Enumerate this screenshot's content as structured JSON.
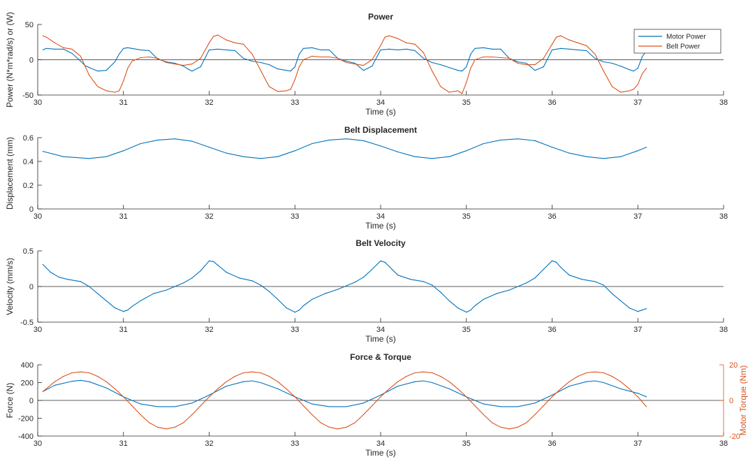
{
  "figure": {
    "colors": {
      "blue": "#0072BD",
      "orange": "#D95319",
      "axis": "#262626",
      "zero_line": "#262626"
    }
  },
  "chart_data": [
    {
      "type": "line",
      "title": "Power",
      "xlabel": "Time (s)",
      "ylabel": "Power (N*m*rad/s) or (W)",
      "xlim": [
        30,
        38
      ],
      "ylim": [
        -50,
        50
      ],
      "xticks": [
        30,
        31,
        32,
        33,
        34,
        35,
        36,
        37,
        38
      ],
      "yticks": [
        -50,
        0,
        50
      ],
      "legend": {
        "position": "top-right"
      },
      "series": [
        {
          "name": "Motor Power",
          "color": "#0072BD",
          "x": [
            30.06,
            30.1,
            30.2,
            30.3,
            30.4,
            30.5,
            30.55,
            30.6,
            30.7,
            30.8,
            30.9,
            30.95,
            31,
            31.05,
            31.1,
            31.2,
            31.3,
            31.4,
            31.5,
            31.6,
            31.7,
            31.75,
            31.8,
            31.9,
            32,
            32.1,
            32.2,
            32.3,
            32.4,
            32.5,
            32.6,
            32.7,
            32.8,
            32.9,
            32.95,
            33,
            33.05,
            33.1,
            33.2,
            33.3,
            33.4,
            33.5,
            33.6,
            33.7,
            33.75,
            33.8,
            33.9,
            34,
            34.1,
            34.2,
            34.3,
            34.4,
            34.5,
            34.6,
            34.7,
            34.8,
            34.9,
            34.95,
            35,
            35.05,
            35.1,
            35.2,
            35.3,
            35.4,
            35.5,
            35.6,
            35.7,
            35.75,
            35.8,
            35.9,
            36,
            36.1,
            36.2,
            36.3,
            36.4,
            36.5,
            36.6,
            36.7,
            36.8,
            36.9,
            36.95,
            37,
            37.05,
            37.1
          ],
          "y": [
            14,
            16,
            15,
            15,
            9,
            -2,
            -8,
            -11,
            -16,
            -15,
            -3,
            8,
            16,
            17,
            16,
            14,
            13,
            1,
            -3,
            -5,
            -9,
            -13,
            -16,
            -10,
            14,
            15,
            14,
            13,
            2,
            -2,
            -4,
            -7,
            -13,
            -15,
            -16,
            -10,
            8,
            16,
            17,
            14,
            14,
            2,
            -2,
            -5,
            -10,
            -15,
            -9,
            14,
            15,
            14,
            15,
            13,
            2,
            -4,
            -7,
            -11,
            -15,
            -16,
            -10,
            8,
            16,
            17,
            15,
            15,
            2,
            -3,
            -5,
            -10,
            -15,
            -10,
            14,
            16,
            15,
            14,
            13,
            2,
            -3,
            -5,
            -9,
            -14,
            -16,
            -12,
            4,
            13
          ]
        },
        {
          "name": "Belt Power",
          "color": "#D95319",
          "x": [
            30.06,
            30.1,
            30.2,
            30.3,
            30.4,
            30.5,
            30.6,
            30.7,
            30.8,
            30.9,
            30.95,
            31,
            31.05,
            31.1,
            31.2,
            31.3,
            31.4,
            31.5,
            31.6,
            31.7,
            31.8,
            31.9,
            32,
            32.05,
            32.1,
            32.2,
            32.3,
            32.4,
            32.5,
            32.6,
            32.7,
            32.8,
            32.9,
            32.95,
            33,
            33.05,
            33.1,
            33.2,
            33.3,
            33.4,
            33.5,
            33.6,
            33.7,
            33.8,
            33.9,
            34,
            34.05,
            34.1,
            34.2,
            34.3,
            34.4,
            34.5,
            34.6,
            34.7,
            34.8,
            34.9,
            34.95,
            35,
            35.05,
            35.1,
            35.2,
            35.3,
            35.4,
            35.5,
            35.6,
            35.7,
            35.8,
            35.9,
            36,
            36.05,
            36.1,
            36.2,
            36.3,
            36.4,
            36.5,
            36.6,
            36.7,
            36.8,
            36.9,
            36.95,
            37,
            37.05,
            37.1
          ],
          "y": [
            34,
            32,
            24,
            17,
            15,
            5,
            -22,
            -38,
            -44,
            -46,
            -44,
            -30,
            -12,
            -2,
            3,
            4,
            2,
            -4,
            -6,
            -8,
            -6,
            2,
            24,
            33,
            35,
            28,
            24,
            22,
            8,
            -15,
            -38,
            -45,
            -44,
            -42,
            -28,
            -10,
            0,
            5,
            4,
            4,
            2,
            -4,
            -6,
            -8,
            0,
            20,
            32,
            34,
            30,
            24,
            22,
            10,
            -16,
            -38,
            -46,
            -44,
            -48,
            -32,
            -12,
            0,
            4,
            4,
            3,
            2,
            -5,
            -7,
            -7,
            2,
            22,
            32,
            34,
            28,
            24,
            20,
            8,
            -16,
            -38,
            -46,
            -44,
            -42,
            -35,
            -20,
            -12
          ]
        }
      ]
    },
    {
      "type": "line",
      "title": "Belt Displacement",
      "xlabel": "Time (s)",
      "ylabel": "Displacement (mm)",
      "xlim": [
        30,
        38
      ],
      "ylim": [
        0,
        0.6
      ],
      "xticks": [
        30,
        31,
        32,
        33,
        34,
        35,
        36,
        37,
        38
      ],
      "yticks": [
        0,
        0.2,
        0.4,
        0.6
      ],
      "series": [
        {
          "color": "#0072BD",
          "x": [
            30.06,
            30.3,
            30.6,
            30.8,
            31,
            31.2,
            31.4,
            31.6,
            31.8,
            32,
            32.2,
            32.4,
            32.6,
            32.8,
            33,
            33.2,
            33.4,
            33.6,
            33.8,
            34,
            34.2,
            34.4,
            34.6,
            34.8,
            35,
            35.2,
            35.4,
            35.6,
            35.8,
            36,
            36.2,
            36.4,
            36.6,
            36.8,
            37,
            37.1
          ],
          "y": [
            0.485,
            0.44,
            0.425,
            0.44,
            0.49,
            0.55,
            0.58,
            0.59,
            0.57,
            0.52,
            0.47,
            0.44,
            0.425,
            0.44,
            0.49,
            0.55,
            0.58,
            0.59,
            0.575,
            0.53,
            0.48,
            0.44,
            0.425,
            0.44,
            0.49,
            0.55,
            0.58,
            0.59,
            0.575,
            0.52,
            0.47,
            0.44,
            0.425,
            0.44,
            0.49,
            0.52
          ]
        }
      ]
    },
    {
      "type": "line",
      "title": "Belt Velocity",
      "xlabel": "Time (s)",
      "ylabel": "Velocity (mm/s)",
      "xlim": [
        30,
        38
      ],
      "ylim": [
        -0.5,
        0.5
      ],
      "xticks": [
        30,
        31,
        32,
        33,
        34,
        35,
        36,
        37,
        38
      ],
      "yticks": [
        -0.5,
        0,
        0.5
      ],
      "series": [
        {
          "color": "#0072BD",
          "x": [
            30.06,
            30.15,
            30.25,
            30.35,
            30.5,
            30.6,
            30.7,
            30.8,
            30.9,
            31,
            31.05,
            31.1,
            31.2,
            31.35,
            31.5,
            31.6,
            31.7,
            31.8,
            31.9,
            32,
            32.05,
            32.1,
            32.2,
            32.35,
            32.5,
            32.6,
            32.7,
            32.8,
            32.9,
            33,
            33.05,
            33.1,
            33.2,
            33.35,
            33.5,
            33.6,
            33.7,
            33.8,
            33.9,
            34,
            34.05,
            34.1,
            34.2,
            34.35,
            34.5,
            34.6,
            34.7,
            34.8,
            34.9,
            35,
            35.05,
            35.1,
            35.2,
            35.35,
            35.5,
            35.6,
            35.7,
            35.8,
            35.9,
            36,
            36.05,
            36.1,
            36.2,
            36.35,
            36.5,
            36.6,
            36.7,
            36.8,
            36.9,
            37,
            37.05,
            37.1
          ],
          "y": [
            0.31,
            0.2,
            0.13,
            0.1,
            0.07,
            0,
            -0.1,
            -0.2,
            -0.3,
            -0.35,
            -0.33,
            -0.28,
            -0.2,
            -0.1,
            -0.05,
            0,
            0.05,
            0.12,
            0.22,
            0.36,
            0.35,
            0.3,
            0.2,
            0.12,
            0.08,
            0.02,
            -0.07,
            -0.18,
            -0.3,
            -0.36,
            -0.33,
            -0.27,
            -0.18,
            -0.1,
            -0.04,
            0.01,
            0.06,
            0.13,
            0.24,
            0.36,
            0.34,
            0.28,
            0.16,
            0.1,
            0.07,
            0.02,
            -0.08,
            -0.2,
            -0.3,
            -0.36,
            -0.33,
            -0.27,
            -0.18,
            -0.1,
            -0.05,
            0,
            0.05,
            0.12,
            0.24,
            0.36,
            0.34,
            0.27,
            0.16,
            0.1,
            0.07,
            0.02,
            -0.1,
            -0.2,
            -0.3,
            -0.35,
            -0.33,
            -0.31
          ]
        }
      ]
    },
    {
      "type": "line",
      "title": "Force & Torque",
      "xlabel": "Time (s)",
      "ylabel": "Force (N)",
      "ylabel_right": "Motor Torque (Nm)",
      "xlim": [
        30,
        38
      ],
      "ylim": [
        -400,
        400
      ],
      "ylim_right": [
        -20,
        20
      ],
      "xticks": [
        30,
        31,
        32,
        33,
        34,
        35,
        36,
        37,
        38
      ],
      "yticks": [
        -400,
        -200,
        0,
        200,
        400
      ],
      "yticks_right": [
        -20,
        0,
        20
      ],
      "series": [
        {
          "name": "Force",
          "axis": "left",
          "color": "#0072BD",
          "x": [
            30.06,
            30.2,
            30.4,
            30.5,
            30.6,
            30.8,
            31,
            31.2,
            31.4,
            31.6,
            31.8,
            32,
            32.2,
            32.4,
            32.5,
            32.6,
            32.8,
            33,
            33.2,
            33.4,
            33.6,
            33.8,
            34,
            34.2,
            34.4,
            34.5,
            34.6,
            34.8,
            35,
            35.2,
            35.4,
            35.6,
            35.8,
            36,
            36.2,
            36.4,
            36.5,
            36.6,
            36.8,
            37,
            37.1
          ],
          "y": [
            100,
            170,
            215,
            225,
            210,
            140,
            40,
            -40,
            -70,
            -70,
            -30,
            60,
            160,
            210,
            220,
            200,
            130,
            40,
            -40,
            -70,
            -70,
            -30,
            60,
            160,
            210,
            220,
            200,
            130,
            40,
            -40,
            -70,
            -70,
            -30,
            60,
            160,
            210,
            220,
            200,
            130,
            80,
            40
          ]
        },
        {
          "name": "Motor Torque",
          "axis": "right",
          "color": "#D95319",
          "x": [
            30.06,
            30.2,
            30.3,
            30.4,
            30.5,
            30.6,
            30.7,
            30.8,
            30.9,
            31,
            31.1,
            31.2,
            31.3,
            31.4,
            31.5,
            31.6,
            31.7,
            31.8,
            31.9,
            32,
            32.1,
            32.2,
            32.3,
            32.4,
            32.5,
            32.6,
            32.7,
            32.8,
            32.9,
            33,
            33.1,
            33.2,
            33.3,
            33.4,
            33.5,
            33.6,
            33.7,
            33.8,
            33.9,
            34,
            34.1,
            34.2,
            34.3,
            34.4,
            34.5,
            34.6,
            34.7,
            34.8,
            34.9,
            35,
            35.1,
            35.2,
            35.3,
            35.4,
            35.5,
            35.6,
            35.7,
            35.8,
            35.9,
            36,
            36.1,
            36.2,
            36.3,
            36.4,
            36.5,
            36.6,
            36.7,
            36.8,
            36.9,
            37,
            37.1
          ],
          "y": [
            5,
            10.5,
            13.5,
            15.5,
            16,
            15.5,
            13.5,
            10.5,
            6.5,
            2,
            -3,
            -8,
            -12.5,
            -15,
            -16,
            -15,
            -12.5,
            -8,
            -3,
            2,
            6.5,
            10.5,
            13.5,
            15.5,
            16,
            15.5,
            13.5,
            10.5,
            6.5,
            2,
            -3,
            -8,
            -12.5,
            -15,
            -16,
            -15,
            -12.5,
            -8,
            -3,
            2,
            6.5,
            10.5,
            13.5,
            15.5,
            16,
            15.5,
            13.5,
            10.5,
            6.5,
            2,
            -3,
            -8,
            -12.5,
            -15,
            -16,
            -15,
            -12.5,
            -8,
            -3,
            2,
            6.5,
            10.5,
            13.5,
            15.5,
            16,
            15.5,
            13.5,
            10.5,
            6.5,
            2,
            -3.5
          ]
        }
      ]
    }
  ]
}
